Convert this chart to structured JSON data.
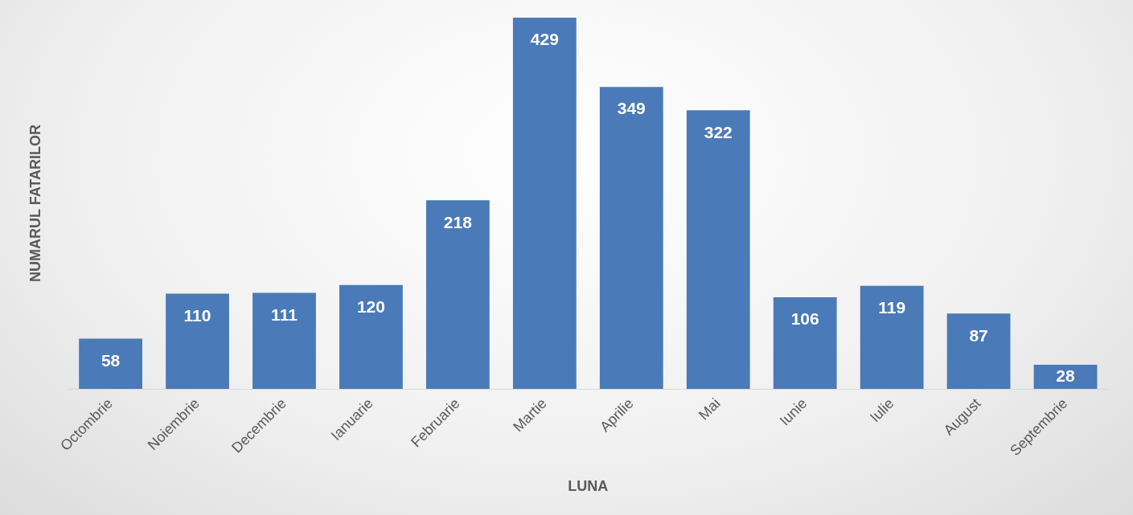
{
  "chart_data": {
    "type": "bar",
    "xlabel": "LUNA",
    "ylabel": "NUMARUL FATARILOR",
    "categories": [
      "Octombrie",
      "Noiembrie",
      "Decembrie",
      "Ianuarie",
      "Februarie",
      "Martie",
      "Aprilie",
      "Mai",
      "Iunie",
      "Iulie",
      "August",
      "Septembrie"
    ],
    "values": [
      58,
      110,
      111,
      120,
      218,
      429,
      349,
      322,
      106,
      119,
      87,
      28
    ],
    "color": "#4a7ab8",
    "data_labels": true
  }
}
